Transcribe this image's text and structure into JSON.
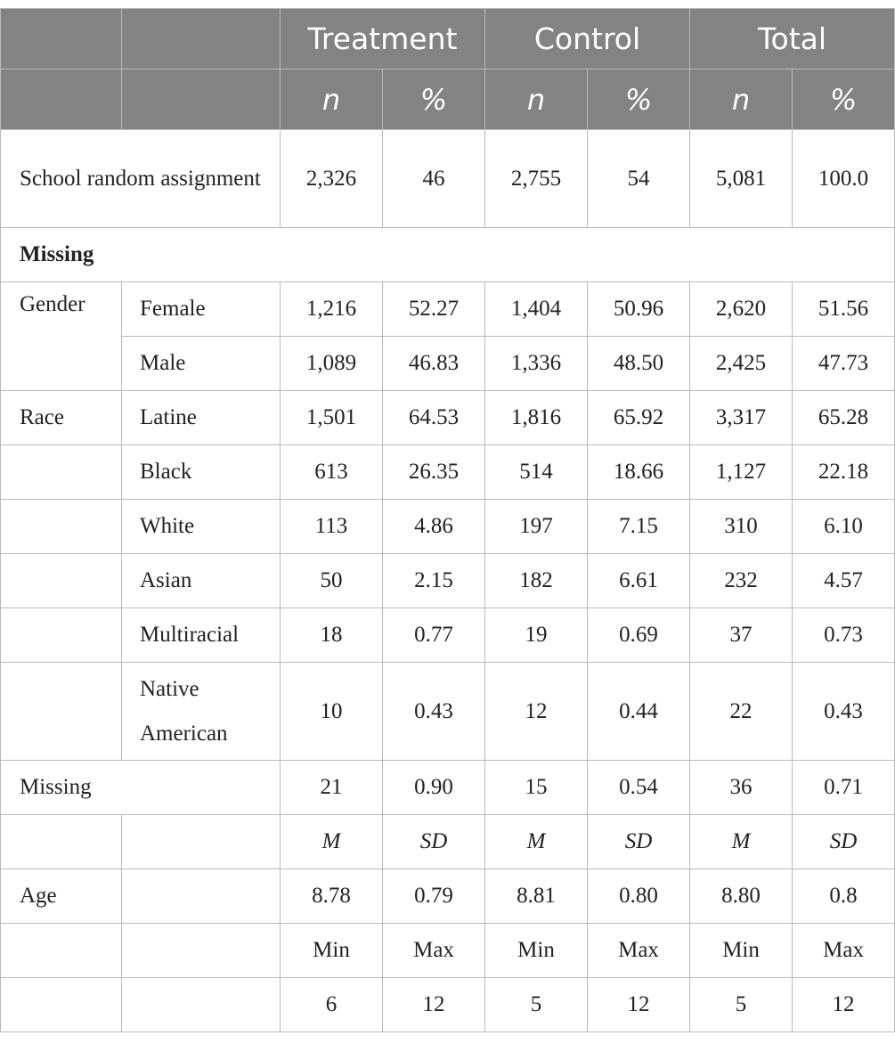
{
  "header": {
    "groups": [
      "Treatment",
      "Control",
      "Total"
    ],
    "sub": [
      "n",
      "%",
      "n",
      "%",
      "n",
      "%"
    ]
  },
  "rows": {
    "assignment": {
      "label": "School random assignment",
      "values": [
        "2,326",
        "46",
        "2,755",
        "54",
        "5,081",
        "100.0"
      ]
    },
    "missing_section": {
      "label": "Missing"
    },
    "gender": {
      "label": "Gender"
    },
    "female": {
      "label": "Female",
      "values": [
        "1,216",
        "52.27",
        "1,404",
        "50.96",
        "2,620",
        "51.56"
      ]
    },
    "male": {
      "label": "Male",
      "values": [
        "1,089",
        "46.83",
        "1,336",
        "48.50",
        "2,425",
        "47.73"
      ]
    },
    "race": {
      "label": "Race"
    },
    "latine": {
      "label": "Latine",
      "values": [
        "1,501",
        "64.53",
        "1,816",
        "65.92",
        "3,317",
        "65.28"
      ]
    },
    "black": {
      "label": "Black",
      "values": [
        "613",
        "26.35",
        "514",
        "18.66",
        "1,127",
        "22.18"
      ]
    },
    "white": {
      "label": "White",
      "values": [
        "113",
        "4.86",
        "197",
        "7.15",
        "310",
        "6.10"
      ]
    },
    "asian": {
      "label": "Asian",
      "values": [
        "50",
        "2.15",
        "182",
        "6.61",
        "232",
        "4.57"
      ]
    },
    "multiracial": {
      "label": "Multiracial",
      "values": [
        "18",
        "0.77",
        "19",
        "0.69",
        "37",
        "0.73"
      ]
    },
    "native": {
      "label": "Native American",
      "values": [
        "10",
        "0.43",
        "12",
        "0.44",
        "22",
        "0.43"
      ]
    },
    "missing": {
      "label": "Missing",
      "values": [
        "21",
        "0.90",
        "15",
        "0.54",
        "36",
        "0.71"
      ]
    },
    "msd_header": {
      "values": [
        "M",
        "SD",
        "M",
        "SD",
        "M",
        "SD"
      ]
    },
    "age": {
      "label": "Age",
      "values": [
        "8.78",
        "0.79",
        "8.81",
        "0.80",
        "8.80",
        "0.8"
      ]
    },
    "minmax_header": {
      "values": [
        "Min",
        "Max",
        "Min",
        "Max",
        "Min",
        "Max"
      ]
    },
    "minmax": {
      "values": [
        "6",
        "12",
        "5",
        "12",
        "5",
        "12"
      ]
    }
  }
}
